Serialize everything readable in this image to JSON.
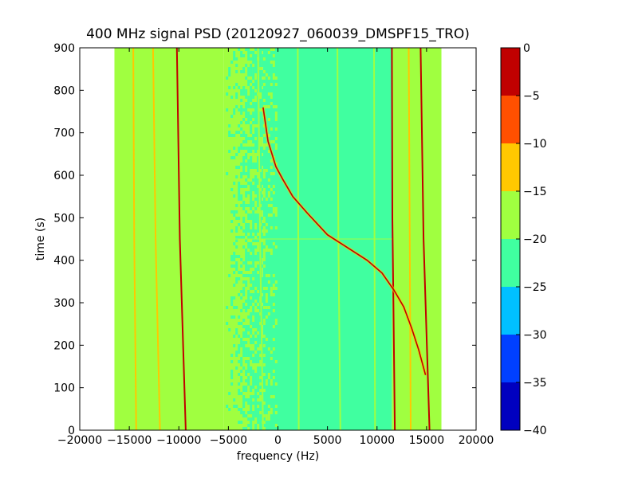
{
  "chart_data": {
    "type": "heatmap",
    "title": "400 MHz signal PSD (20120927_060039_DMSPF15_TRO)",
    "xlabel": "frequency (Hz)",
    "ylabel": "time (s)",
    "xlim": [
      -20000,
      20000
    ],
    "ylim": [
      0,
      900
    ],
    "xticks": [
      -20000,
      -15000,
      -10000,
      -5000,
      0,
      5000,
      10000,
      15000,
      20000
    ],
    "xtick_labels": [
      "−20000",
      "−15000",
      "−10000",
      "−5000",
      "0",
      "5000",
      "10000",
      "15000",
      "20000"
    ],
    "yticks": [
      0,
      100,
      200,
      300,
      400,
      500,
      600,
      700,
      800,
      900
    ],
    "ytick_labels": [
      "0",
      "100",
      "200",
      "300",
      "400",
      "500",
      "600",
      "700",
      "800",
      "900"
    ],
    "data_extent_x": [
      -16500,
      16500
    ],
    "colorbar": {
      "range": [
        -40,
        0
      ],
      "levels": [
        -40,
        -35,
        -30,
        -25,
        -20,
        -15,
        -10,
        -5,
        0
      ],
      "tick_labels": [
        "−40",
        "−35",
        "−30",
        "−25",
        "−20",
        "−15",
        "−10",
        "−5",
        "0"
      ],
      "colors": [
        "#0000bf",
        "#0040ff",
        "#00c0ff",
        "#40ffa0",
        "#a0ff40",
        "#ffc800",
        "#ff5000",
        "#c00000"
      ]
    },
    "regions": [
      {
        "x0": -16500,
        "x1": -5500,
        "level": -17.5
      },
      {
        "x0": -5500,
        "x1": -1500,
        "level": -20,
        "note": "mixed"
      },
      {
        "x0": -1500,
        "x1": 11500,
        "level": -22.5
      },
      {
        "x0": 11500,
        "x1": 16500,
        "level": -17.5
      }
    ],
    "lines": [
      {
        "points": [
          [
            -14600,
            900
          ],
          [
            -14500,
            450
          ],
          [
            -14300,
            0
          ]
        ],
        "color": "#ffc800"
      },
      {
        "points": [
          [
            -12600,
            900
          ],
          [
            -12350,
            450
          ],
          [
            -11900,
            0
          ]
        ],
        "color": "#ffc800"
      },
      {
        "points": [
          [
            -10200,
            900
          ],
          [
            -9900,
            450
          ],
          [
            -9300,
            0
          ]
        ],
        "color": "#c00000"
      },
      {
        "points": [
          [
            -2000,
            900
          ],
          [
            -1800,
            450
          ],
          [
            -1500,
            0
          ]
        ],
        "color": "#a0ff40"
      },
      {
        "points": [
          [
            2000,
            900
          ],
          [
            2050,
            450
          ],
          [
            2100,
            0
          ]
        ],
        "color": "#a0ff40"
      },
      {
        "points": [
          [
            6000,
            900
          ],
          [
            6100,
            450
          ],
          [
            6300,
            0
          ]
        ],
        "color": "#a0ff40"
      },
      {
        "points": [
          [
            9700,
            900
          ],
          [
            9750,
            450
          ],
          [
            9800,
            0
          ]
        ],
        "color": "#a0ff40"
      },
      {
        "points": [
          [
            11500,
            900
          ],
          [
            11550,
            500
          ],
          [
            11650,
            300
          ],
          [
            11800,
            0
          ]
        ],
        "color": "#c00000"
      },
      {
        "points": [
          [
            13200,
            900
          ],
          [
            13300,
            450
          ],
          [
            13400,
            0
          ]
        ],
        "color": "#ffc800"
      },
      {
        "points": [
          [
            14400,
            900
          ],
          [
            14700,
            450
          ],
          [
            15300,
            0
          ]
        ],
        "color": "#c00000"
      }
    ],
    "curve": {
      "color": "#c00000",
      "points": [
        [
          -1500,
          760
        ],
        [
          -1000,
          680
        ],
        [
          -200,
          620
        ],
        [
          500,
          590
        ],
        [
          1500,
          550
        ],
        [
          3000,
          510
        ],
        [
          5000,
          460
        ],
        [
          7000,
          430
        ],
        [
          9000,
          400
        ],
        [
          10500,
          370
        ],
        [
          11700,
          330
        ],
        [
          12700,
          290
        ],
        [
          13500,
          240
        ],
        [
          14200,
          190
        ],
        [
          14900,
          130
        ]
      ]
    }
  }
}
